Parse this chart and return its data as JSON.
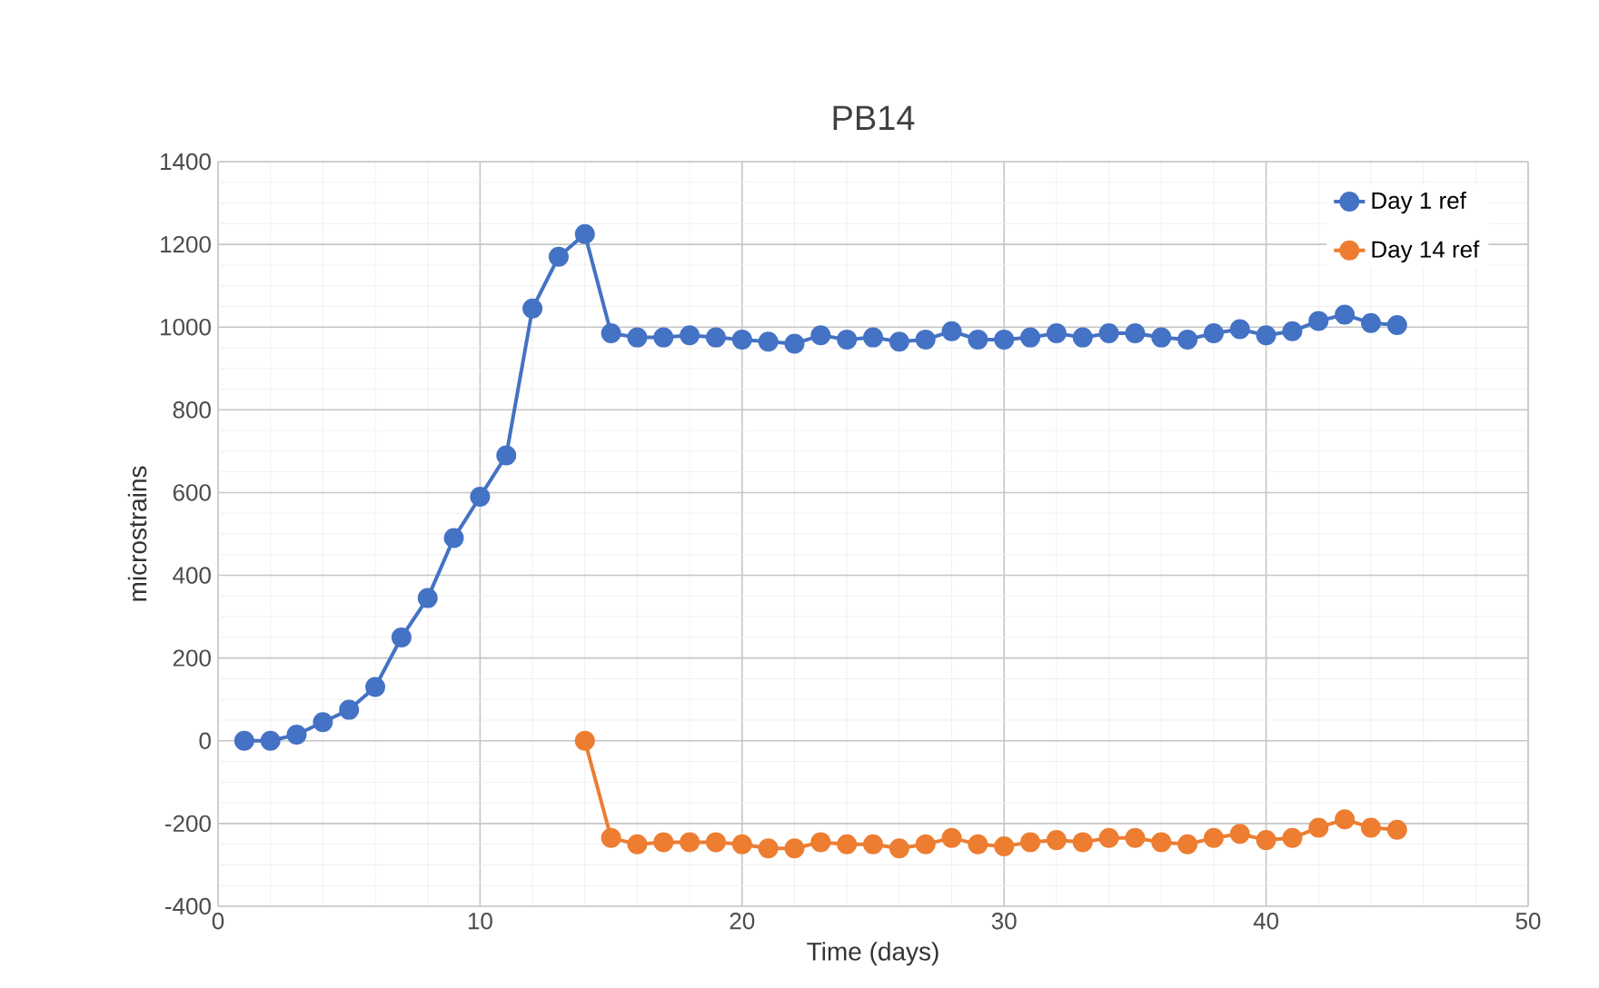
{
  "chart_data": {
    "type": "line",
    "title": "PB14",
    "xlabel": "Time (days)",
    "ylabel": "microstrains",
    "xlim": [
      0,
      50
    ],
    "xticks": [
      0,
      10,
      20,
      30,
      40,
      50
    ],
    "ylim": [
      -400,
      1400
    ],
    "yticks": [
      -400,
      -200,
      0,
      200,
      400,
      600,
      800,
      1000,
      1200,
      1400
    ],
    "grid": true,
    "legend": "top right",
    "marker": "circle",
    "line_style": "solid",
    "series": [
      {
        "name": "Day 1 ref",
        "color": "#4472c4",
        "x": [
          1,
          2,
          3,
          4,
          5,
          6,
          7,
          8,
          9,
          10,
          11,
          12,
          13,
          14,
          15,
          16,
          17,
          18,
          19,
          20,
          21,
          22,
          23,
          24,
          25,
          26,
          27,
          28,
          29,
          30,
          31,
          32,
          33,
          34,
          35,
          36,
          37,
          38,
          39,
          40,
          41,
          42,
          43,
          44,
          45
        ],
        "values": [
          0,
          0,
          15,
          45,
          75,
          130,
          250,
          345,
          490,
          590,
          690,
          1045,
          1170,
          1225,
          985,
          975,
          975,
          980,
          975,
          970,
          965,
          960,
          980,
          970,
          975,
          965,
          970,
          990,
          970,
          970,
          975,
          985,
          975,
          985,
          985,
          975,
          970,
          985,
          995,
          980,
          990,
          1015,
          1030,
          1010,
          1005
        ]
      },
      {
        "name": "Day 14 ref",
        "color": "#ed7d31",
        "x": [
          14,
          15,
          16,
          17,
          18,
          19,
          20,
          21,
          22,
          23,
          24,
          25,
          26,
          27,
          28,
          29,
          30,
          31,
          32,
          33,
          34,
          35,
          36,
          37,
          38,
          39,
          40,
          41,
          42,
          43,
          44,
          45
        ],
        "values": [
          0,
          -235,
          -250,
          -245,
          -245,
          -245,
          -250,
          -260,
          -260,
          -245,
          -250,
          -250,
          -260,
          -250,
          -235,
          -250,
          -255,
          -245,
          -240,
          -245,
          -235,
          -235,
          -245,
          -250,
          -235,
          -225,
          -240,
          -235,
          -210,
          -190,
          -210,
          -215
        ]
      }
    ]
  }
}
